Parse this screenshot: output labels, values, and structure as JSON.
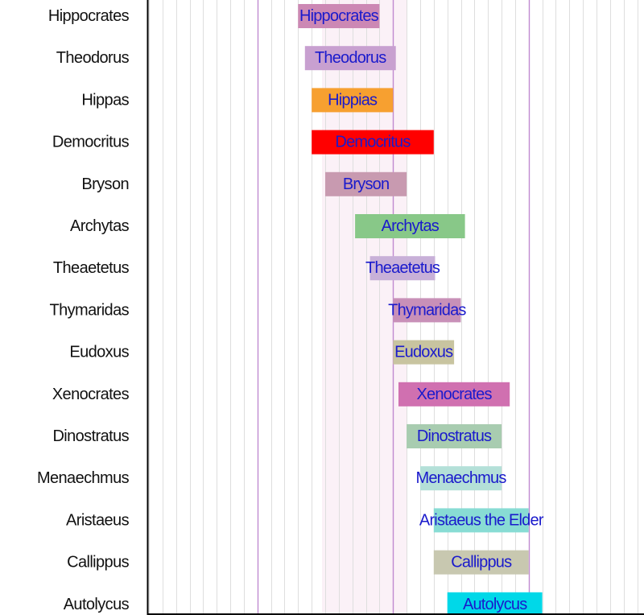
{
  "chart_data": {
    "type": "timeline",
    "x_unit": "year (negative = BC)",
    "xlim": [
      -580,
      -215
    ],
    "grid": true,
    "rows": [
      {
        "row_label": "Hippocrates",
        "bar_label": "Hippocrates",
        "start": -470,
        "end": -410,
        "color": "#cc88b4"
      },
      {
        "row_label": "Theodorus",
        "bar_label": "Theodorus",
        "start": -465,
        "end": -398,
        "color": "#c8a0d0"
      },
      {
        "row_label": "Hippas",
        "bar_label": "Hippias",
        "start": -460,
        "end": -400,
        "color": "#f7a030"
      },
      {
        "row_label": "Democritus",
        "bar_label": "Democritus",
        "start": -460,
        "end": -370,
        "color": "#ff0000"
      },
      {
        "row_label": "Bryson",
        "bar_label": "Bryson",
        "start": -450,
        "end": -390,
        "color": "#c89ab0"
      },
      {
        "row_label": "Archytas",
        "bar_label": "Archytas",
        "start": -428,
        "end": -347,
        "color": "#88c888"
      },
      {
        "row_label": "Theaetetus",
        "bar_label": "Theaetetus",
        "start": -417,
        "end": -369,
        "color": "#c8b0d8"
      },
      {
        "row_label": "Thymaridas",
        "bar_label": "Thymaridas",
        "start": -400,
        "end": -350,
        "color": "#c890b8"
      },
      {
        "row_label": "Eudoxus",
        "bar_label": "Eudoxus",
        "start": -400,
        "end": -355,
        "color": "#c8c4a0"
      },
      {
        "row_label": "Xenocrates",
        "bar_label": "Xenocrates",
        "start": -396,
        "end": -314,
        "color": "#d070b0"
      },
      {
        "row_label": "Dinostratus",
        "bar_label": "Dinostratus",
        "start": -390,
        "end": -320,
        "color": "#a8ccb0"
      },
      {
        "row_label": "Menaechmus",
        "bar_label": "Menaechmus",
        "start": -380,
        "end": -320,
        "color": "#b4e0d8"
      },
      {
        "row_label": "Aristaeus",
        "bar_label": "Aristaeus the Elder",
        "start": -370,
        "end": -300,
        "color": "#88dcd4"
      },
      {
        "row_label": "Callippus",
        "bar_label": "Callippus",
        "start": -370,
        "end": -300,
        "color": "#c8c8b0"
      },
      {
        "row_label": "Autolycus",
        "bar_label": "Autolycus",
        "start": -360,
        "end": -290,
        "color": "#00d8e8"
      }
    ]
  }
}
